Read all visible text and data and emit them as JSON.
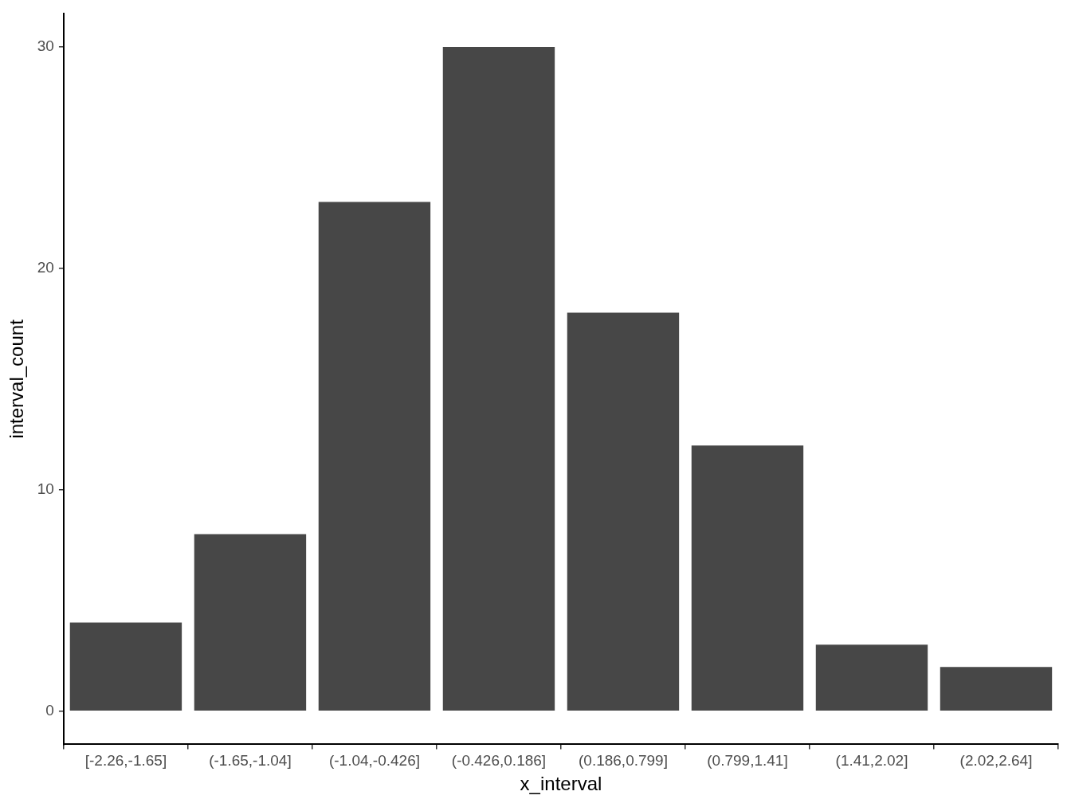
{
  "chart_data": {
    "type": "bar",
    "xlabel": "x_interval",
    "ylabel": "interval_count",
    "categories": [
      "[-2.26,-1.65]",
      "(-1.65,-1.04]",
      "(-1.04,-0.426]",
      "(-0.426,0.186]",
      "(0.186,0.799]",
      "(0.799,1.41]",
      "(1.41,2.02]",
      "(2.02,2.64]"
    ],
    "values": [
      4,
      8,
      23,
      30,
      18,
      12,
      3,
      2
    ],
    "color": "#474747",
    "ylim": [
      -1.5,
      31.5
    ],
    "yticks": [
      0,
      10,
      20,
      30
    ],
    "grid": false,
    "legend": false
  }
}
